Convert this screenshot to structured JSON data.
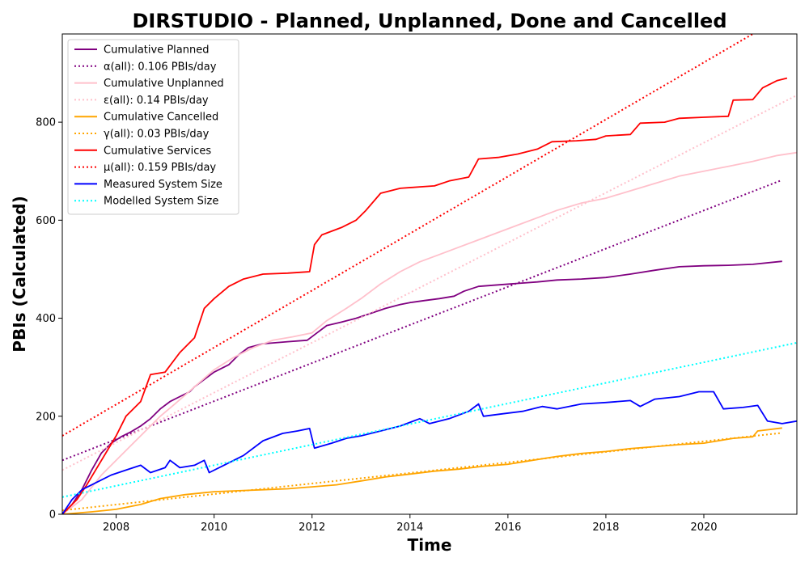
{
  "chart_data": {
    "type": "line",
    "title": "DIRSTUDIO - Planned, Unplanned, Done  and Cancelled",
    "xlabel": "Time",
    "ylabel": "PBIs (Calculated)",
    "xlim": [
      2006.9,
      2021.9
    ],
    "ylim": [
      0,
      980
    ],
    "xticks": [
      2008,
      2010,
      2012,
      2014,
      2016,
      2018,
      2020
    ],
    "yticks": [
      0,
      200,
      400,
      600,
      800
    ],
    "grid": false,
    "legend_position": "top-left",
    "series": [
      {
        "name": "Cumulative Planned",
        "color": "#800080",
        "style": "solid",
        "points": [
          [
            2006.9,
            0
          ],
          [
            2007.1,
            20
          ],
          [
            2007.3,
            50
          ],
          [
            2007.5,
            90
          ],
          [
            2007.7,
            125
          ],
          [
            2007.9,
            145
          ],
          [
            2008.1,
            158
          ],
          [
            2008.3,
            168
          ],
          [
            2008.5,
            180
          ],
          [
            2008.7,
            195
          ],
          [
            2008.9,
            215
          ],
          [
            2009.1,
            230
          ],
          [
            2009.3,
            240
          ],
          [
            2009.5,
            250
          ],
          [
            2009.6,
            260
          ],
          [
            2009.8,
            275
          ],
          [
            2010.0,
            290
          ],
          [
            2010.3,
            305
          ],
          [
            2010.5,
            325
          ],
          [
            2010.7,
            340
          ],
          [
            2011.0,
            348
          ],
          [
            2011.5,
            352
          ],
          [
            2011.9,
            355
          ],
          [
            2012.1,
            370
          ],
          [
            2012.3,
            385
          ],
          [
            2012.6,
            392
          ],
          [
            2012.9,
            400
          ],
          [
            2013.2,
            410
          ],
          [
            2013.5,
            420
          ],
          [
            2013.8,
            428
          ],
          [
            2014.0,
            432
          ],
          [
            2014.3,
            436
          ],
          [
            2014.6,
            440
          ],
          [
            2014.9,
            445
          ],
          [
            2015.1,
            455
          ],
          [
            2015.4,
            465
          ],
          [
            2015.8,
            468
          ],
          [
            2016.2,
            471
          ],
          [
            2016.6,
            474
          ],
          [
            2017.0,
            478
          ],
          [
            2017.5,
            480
          ],
          [
            2018.0,
            483
          ],
          [
            2018.5,
            490
          ],
          [
            2019.0,
            498
          ],
          [
            2019.5,
            505
          ],
          [
            2020.0,
            507
          ],
          [
            2020.5,
            508
          ],
          [
            2021.0,
            510
          ],
          [
            2021.6,
            516
          ]
        ]
      },
      {
        "name": "α(all): 0.106 PBIs/day",
        "color": "#800080",
        "style": "dotted",
        "points": [
          [
            2006.9,
            110
          ],
          [
            2021.6,
            682
          ]
        ]
      },
      {
        "name": "Cumulative Unplanned",
        "color": "#ffc0cb",
        "style": "solid",
        "points": [
          [
            2006.9,
            0
          ],
          [
            2007.3,
            30
          ],
          [
            2007.7,
            80
          ],
          [
            2008.0,
            110
          ],
          [
            2008.3,
            140
          ],
          [
            2008.6,
            170
          ],
          [
            2008.9,
            200
          ],
          [
            2009.2,
            225
          ],
          [
            2009.6,
            260
          ],
          [
            2010.0,
            295
          ],
          [
            2010.4,
            320
          ],
          [
            2010.8,
            340
          ],
          [
            2011.2,
            355
          ],
          [
            2011.6,
            362
          ],
          [
            2012.0,
            370
          ],
          [
            2012.3,
            395
          ],
          [
            2012.7,
            420
          ],
          [
            2013.0,
            440
          ],
          [
            2013.4,
            470
          ],
          [
            2013.8,
            495
          ],
          [
            2014.2,
            515
          ],
          [
            2014.6,
            530
          ],
          [
            2015.0,
            545
          ],
          [
            2015.4,
            560
          ],
          [
            2015.8,
            575
          ],
          [
            2016.2,
            590
          ],
          [
            2016.6,
            605
          ],
          [
            2017.0,
            620
          ],
          [
            2017.5,
            635
          ],
          [
            2018.0,
            645
          ],
          [
            2018.5,
            660
          ],
          [
            2019.0,
            675
          ],
          [
            2019.5,
            690
          ],
          [
            2020.0,
            700
          ],
          [
            2020.5,
            710
          ],
          [
            2021.0,
            720
          ],
          [
            2021.5,
            732
          ],
          [
            2021.9,
            738
          ]
        ]
      },
      {
        "name": "ε(all): 0.14 PBIs/day",
        "color": "#ffc0cb",
        "style": "dotted",
        "points": [
          [
            2006.9,
            90
          ],
          [
            2021.9,
            855
          ]
        ]
      },
      {
        "name": "Cumulative Cancelled",
        "color": "#ffa500",
        "style": "solid",
        "points": [
          [
            2006.9,
            0
          ],
          [
            2007.5,
            5
          ],
          [
            2008.0,
            10
          ],
          [
            2008.5,
            20
          ],
          [
            2008.9,
            32
          ],
          [
            2009.4,
            40
          ],
          [
            2010.0,
            46
          ],
          [
            2010.5,
            48
          ],
          [
            2011.0,
            50
          ],
          [
            2011.5,
            52
          ],
          [
            2012.0,
            56
          ],
          [
            2012.5,
            60
          ],
          [
            2013.0,
            68
          ],
          [
            2013.5,
            76
          ],
          [
            2014.0,
            82
          ],
          [
            2014.5,
            88
          ],
          [
            2015.0,
            92
          ],
          [
            2015.5,
            98
          ],
          [
            2016.0,
            102
          ],
          [
            2016.5,
            110
          ],
          [
            2017.0,
            118
          ],
          [
            2017.5,
            124
          ],
          [
            2018.0,
            128
          ],
          [
            2018.5,
            134
          ],
          [
            2019.0,
            138
          ],
          [
            2019.5,
            142
          ],
          [
            2020.0,
            145
          ],
          [
            2020.3,
            150
          ],
          [
            2020.6,
            155
          ],
          [
            2021.0,
            158
          ],
          [
            2021.1,
            170
          ],
          [
            2021.6,
            176
          ]
        ]
      },
      {
        "name": "γ(all): 0.03 PBIs/day",
        "color": "#ffa500",
        "style": "dotted",
        "points": [
          [
            2006.9,
            8
          ],
          [
            2021.6,
            166
          ]
        ]
      },
      {
        "name": "Cumulative Services",
        "color": "#ff0000",
        "style": "solid",
        "points": [
          [
            2006.9,
            0
          ],
          [
            2007.2,
            30
          ],
          [
            2007.4,
            60
          ],
          [
            2007.7,
            110
          ],
          [
            2008.0,
            160
          ],
          [
            2008.2,
            200
          ],
          [
            2008.5,
            230
          ],
          [
            2008.7,
            285
          ],
          [
            2009.0,
            290
          ],
          [
            2009.3,
            330
          ],
          [
            2009.6,
            360
          ],
          [
            2009.8,
            420
          ],
          [
            2010.0,
            440
          ],
          [
            2010.3,
            465
          ],
          [
            2010.6,
            480
          ],
          [
            2011.0,
            490
          ],
          [
            2011.5,
            492
          ],
          [
            2011.95,
            495
          ],
          [
            2012.05,
            550
          ],
          [
            2012.2,
            570
          ],
          [
            2012.6,
            585
          ],
          [
            2012.9,
            600
          ],
          [
            2013.1,
            620
          ],
          [
            2013.4,
            655
          ],
          [
            2013.8,
            665
          ],
          [
            2014.2,
            668
          ],
          [
            2014.5,
            670
          ],
          [
            2014.8,
            680
          ],
          [
            2015.2,
            688
          ],
          [
            2015.4,
            725
          ],
          [
            2015.8,
            728
          ],
          [
            2016.2,
            735
          ],
          [
            2016.6,
            745
          ],
          [
            2016.9,
            760
          ],
          [
            2017.4,
            762
          ],
          [
            2017.8,
            765
          ],
          [
            2018.0,
            772
          ],
          [
            2018.5,
            775
          ],
          [
            2018.7,
            798
          ],
          [
            2019.2,
            800
          ],
          [
            2019.5,
            808
          ],
          [
            2020.0,
            810
          ],
          [
            2020.5,
            812
          ],
          [
            2020.6,
            845
          ],
          [
            2021.0,
            846
          ],
          [
            2021.2,
            870
          ],
          [
            2021.5,
            885
          ],
          [
            2021.7,
            890
          ]
        ]
      },
      {
        "name": "μ(all): 0.159 PBIs/day",
        "color": "#ff0000",
        "style": "dotted",
        "points": [
          [
            2006.9,
            160
          ],
          [
            2021.0,
            980
          ]
        ]
      },
      {
        "name": "Measured System Size",
        "color": "#0000ff",
        "style": "solid",
        "points": [
          [
            2006.9,
            0
          ],
          [
            2007.1,
            30
          ],
          [
            2007.3,
            50
          ],
          [
            2007.6,
            65
          ],
          [
            2007.9,
            80
          ],
          [
            2008.2,
            90
          ],
          [
            2008.5,
            100
          ],
          [
            2008.7,
            85
          ],
          [
            2009.0,
            95
          ],
          [
            2009.1,
            110
          ],
          [
            2009.3,
            95
          ],
          [
            2009.6,
            100
          ],
          [
            2009.8,
            110
          ],
          [
            2009.9,
            85
          ],
          [
            2010.2,
            100
          ],
          [
            2010.6,
            120
          ],
          [
            2011.0,
            150
          ],
          [
            2011.4,
            165
          ],
          [
            2011.7,
            170
          ],
          [
            2011.95,
            175
          ],
          [
            2012.05,
            135
          ],
          [
            2012.4,
            145
          ],
          [
            2012.7,
            155
          ],
          [
            2013.0,
            160
          ],
          [
            2013.4,
            170
          ],
          [
            2013.8,
            180
          ],
          [
            2014.2,
            195
          ],
          [
            2014.4,
            185
          ],
          [
            2014.8,
            195
          ],
          [
            2015.2,
            210
          ],
          [
            2015.4,
            225
          ],
          [
            2015.5,
            200
          ],
          [
            2015.9,
            205
          ],
          [
            2016.3,
            210
          ],
          [
            2016.7,
            220
          ],
          [
            2017.0,
            215
          ],
          [
            2017.5,
            225
          ],
          [
            2018.0,
            228
          ],
          [
            2018.5,
            232
          ],
          [
            2018.7,
            220
          ],
          [
            2019.0,
            235
          ],
          [
            2019.5,
            240
          ],
          [
            2019.9,
            250
          ],
          [
            2020.2,
            250
          ],
          [
            2020.4,
            215
          ],
          [
            2020.8,
            218
          ],
          [
            2021.1,
            222
          ],
          [
            2021.3,
            190
          ],
          [
            2021.6,
            185
          ],
          [
            2021.9,
            190
          ]
        ]
      },
      {
        "name": "Modelled System Size",
        "color": "#00ffff",
        "style": "dotted",
        "points": [
          [
            2006.9,
            35
          ],
          [
            2021.9,
            350
          ]
        ]
      }
    ]
  }
}
